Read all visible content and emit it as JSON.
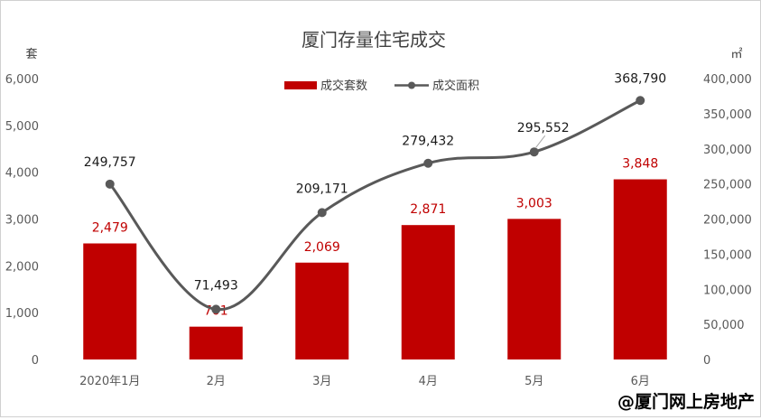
{
  "chart_data": {
    "type": "bar",
    "title": "厦门存量住宅成交",
    "categories": [
      "2020年1月",
      "2月",
      "3月",
      "4月",
      "5月",
      "6月"
    ],
    "left_unit": "套",
    "right_unit": "㎡",
    "y_left_lim": [
      0,
      6000
    ],
    "y_left_ticks": [
      "0",
      "1,000",
      "2,000",
      "3,000",
      "4,000",
      "5,000",
      "6,000"
    ],
    "y_right_lim": [
      0,
      400000
    ],
    "y_right_ticks": [
      "0",
      "50,000",
      "100,000",
      "150,000",
      "200,000",
      "250,000",
      "300,000",
      "350,000",
      "400,000"
    ],
    "legend_position": "top-center",
    "grid": false,
    "series": [
      {
        "name": "成交套数",
        "type": "bar",
        "axis": "left",
        "color": "#c00000",
        "values": [
          2479,
          701,
          2069,
          2871,
          3003,
          3848
        ],
        "labels": [
          "2,479",
          "701",
          "2,069",
          "2,871",
          "3,003",
          "3,848"
        ]
      },
      {
        "name": "成交面积",
        "type": "line",
        "axis": "right",
        "color": "#595959",
        "values": [
          249757,
          71493,
          209171,
          279432,
          295552,
          368790
        ],
        "labels": [
          "249,757",
          "71,493",
          "209,171",
          "279,432",
          "295,552",
          "368,790"
        ]
      }
    ]
  },
  "watermark": "@厦门网上房地产"
}
